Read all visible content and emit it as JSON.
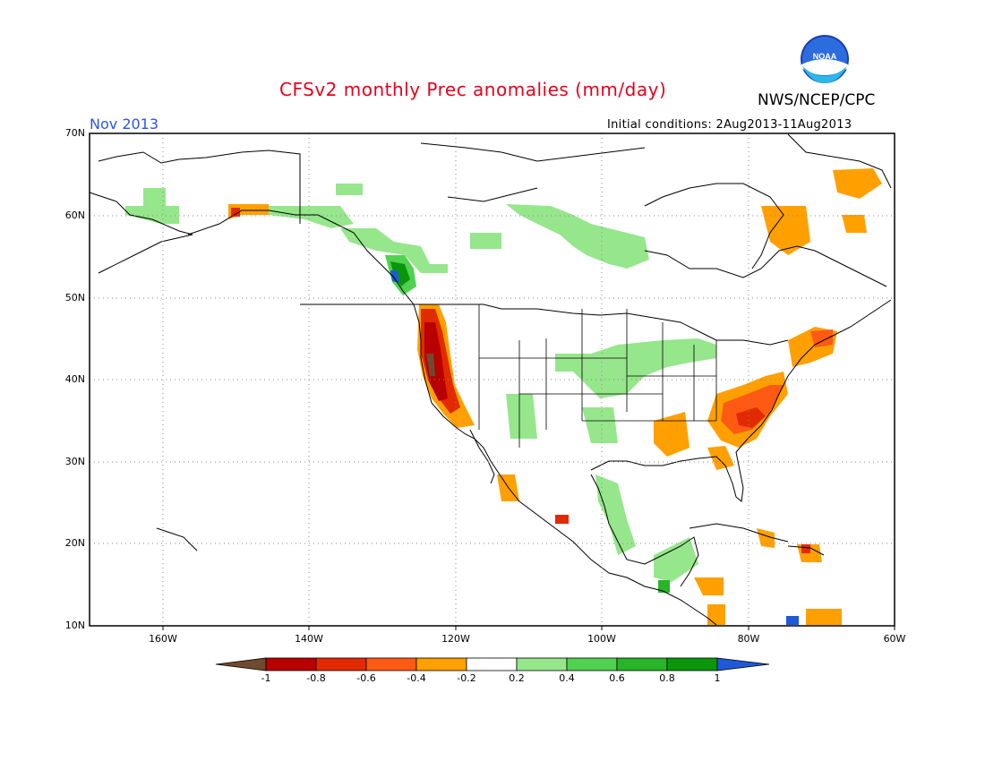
{
  "title": "CFSv2 monthly Prec anomalies (mm/day)",
  "agency": "NWS/NCEP/CPC",
  "logo_text": "NOAA",
  "month": "Nov 2013",
  "initial_conditions": "Initial conditions: 2Aug2013-11Aug2013",
  "lat_labels": [
    "70N",
    "60N",
    "50N",
    "40N",
    "30N",
    "20N",
    "10N"
  ],
  "lon_labels": [
    "160W",
    "140W",
    "120W",
    "100W",
    "80W",
    "60W"
  ],
  "colorbar": {
    "ticks": [
      "-1",
      "-0.8",
      "-0.6",
      "-0.4",
      "-0.2",
      "0.2",
      "0.4",
      "0.6",
      "0.8",
      "1"
    ],
    "colors": [
      "#6e4a2e",
      "#b80000",
      "#e22a00",
      "#ff5a14",
      "#ffa000",
      "#ffffff",
      "#96e68c",
      "#50d250",
      "#28b428",
      "#0a960a",
      "#1e5ad7"
    ]
  },
  "map": {
    "extent": {
      "lon_min": -170,
      "lon_max": -60,
      "lat_min": 10,
      "lat_max": 70
    },
    "colors": {
      "land_line": "#000000",
      "grid": "#777777"
    }
  }
}
